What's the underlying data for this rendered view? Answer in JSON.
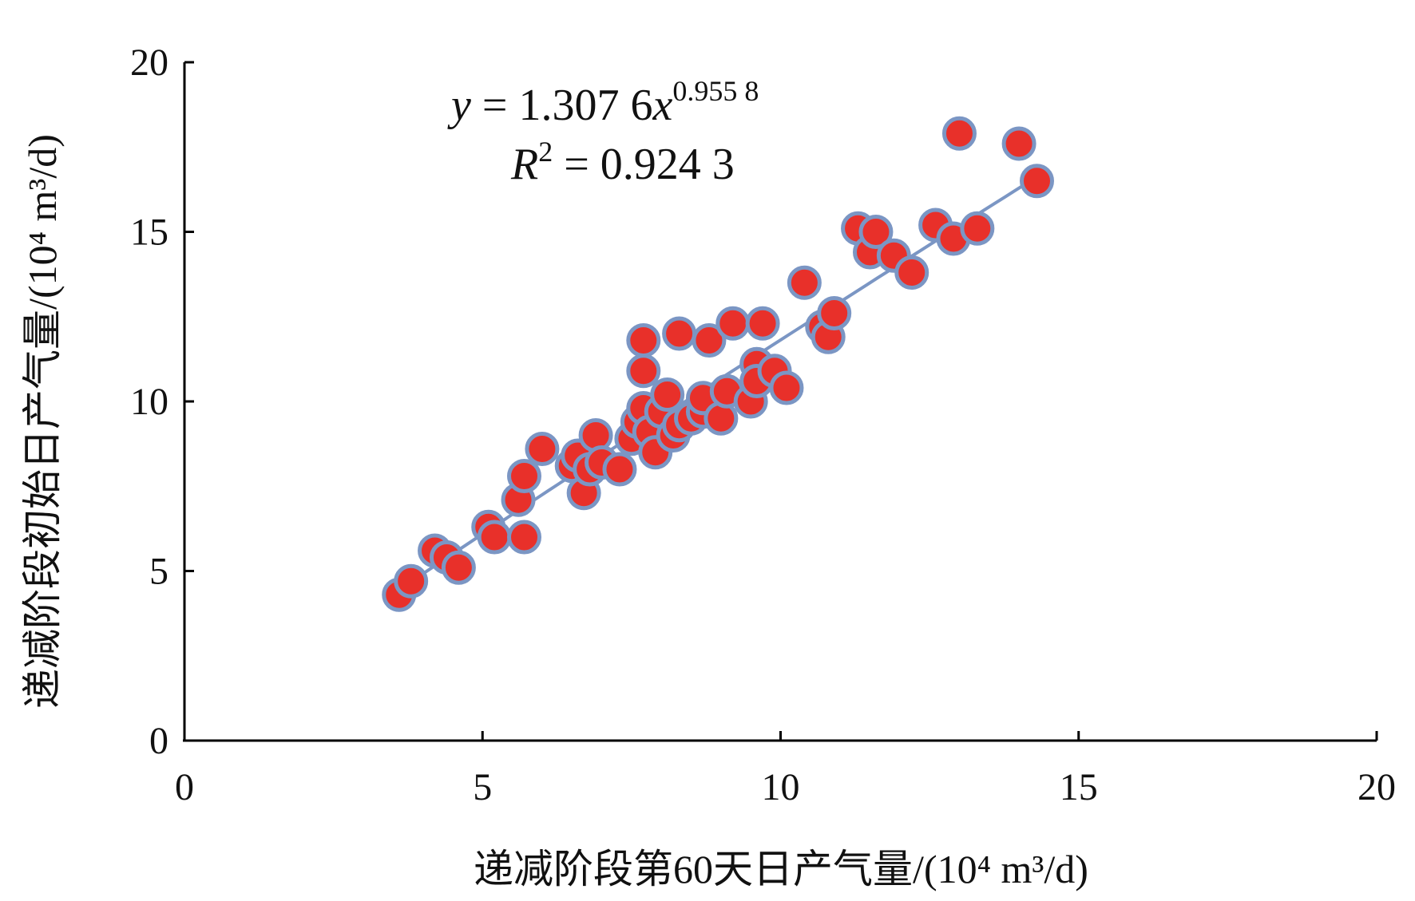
{
  "chart_data": {
    "type": "scatter",
    "title": "",
    "xlabel": "递减阶段第60天日产气量/(10⁴ m³/d)",
    "ylabel": "递减阶段初始日产气量/(10⁴ m³/d)",
    "xlim": [
      0,
      20
    ],
    "ylim": [
      0,
      20
    ],
    "x_ticks": [
      "0",
      "5",
      "10",
      "15",
      "20"
    ],
    "y_ticks": [
      "0",
      "5",
      "10",
      "15",
      "20"
    ],
    "grid": false,
    "legend": "none",
    "colors": {
      "point_fill": "#e8302a",
      "point_stroke": "#7b96c4",
      "trendline": "#7b96c4",
      "axis": "#000000"
    },
    "equation": {
      "y_var": "y",
      "equals": " = ",
      "coef": "1.307 6",
      "x_var": "x",
      "exponent": "0.955 8",
      "r2_var": "R",
      "r2_exp": "2",
      "r2_value": " = 0.924 3"
    },
    "fit": {
      "a": 1.3076,
      "b": 0.9558,
      "x_range": [
        3.6,
        14.3
      ]
    },
    "points": [
      [
        3.6,
        4.3
      ],
      [
        3.8,
        4.7
      ],
      [
        4.2,
        5.6
      ],
      [
        4.4,
        5.4
      ],
      [
        4.6,
        5.1
      ],
      [
        5.1,
        6.3
      ],
      [
        5.2,
        6.0
      ],
      [
        5.6,
        7.1
      ],
      [
        5.7,
        7.8
      ],
      [
        5.7,
        6.0
      ],
      [
        6.0,
        8.6
      ],
      [
        6.5,
        8.1
      ],
      [
        6.6,
        8.4
      ],
      [
        6.7,
        7.3
      ],
      [
        6.8,
        8.0
      ],
      [
        6.9,
        9.0
      ],
      [
        7.0,
        8.2
      ],
      [
        7.3,
        8.0
      ],
      [
        7.5,
        8.9
      ],
      [
        7.6,
        9.4
      ],
      [
        7.7,
        10.9
      ],
      [
        7.7,
        11.8
      ],
      [
        7.7,
        9.8
      ],
      [
        7.8,
        9.1
      ],
      [
        7.9,
        8.5
      ],
      [
        8.0,
        9.7
      ],
      [
        8.1,
        10.2
      ],
      [
        8.2,
        9.0
      ],
      [
        8.3,
        9.3
      ],
      [
        8.3,
        12.0
      ],
      [
        8.5,
        9.5
      ],
      [
        8.7,
        9.7
      ],
      [
        8.7,
        10.1
      ],
      [
        8.8,
        11.8
      ],
      [
        9.0,
        9.5
      ],
      [
        9.1,
        10.3
      ],
      [
        9.2,
        12.3
      ],
      [
        9.5,
        10.0
      ],
      [
        9.6,
        11.1
      ],
      [
        9.6,
        10.6
      ],
      [
        9.7,
        12.3
      ],
      [
        9.9,
        10.9
      ],
      [
        10.1,
        10.4
      ],
      [
        10.4,
        13.5
      ],
      [
        10.7,
        12.2
      ],
      [
        10.8,
        11.9
      ],
      [
        10.9,
        12.6
      ],
      [
        11.3,
        15.1
      ],
      [
        11.5,
        14.4
      ],
      [
        11.6,
        15.0
      ],
      [
        11.9,
        14.3
      ],
      [
        12.2,
        13.8
      ],
      [
        12.6,
        15.2
      ],
      [
        12.9,
        14.8
      ],
      [
        13.0,
        17.9
      ],
      [
        13.3,
        15.1
      ],
      [
        14.0,
        17.6
      ],
      [
        14.3,
        16.5
      ]
    ]
  }
}
